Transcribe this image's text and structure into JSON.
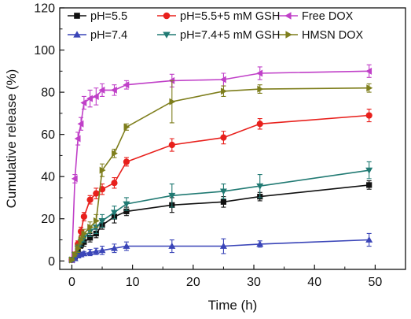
{
  "chart_data": {
    "type": "line",
    "xlabel": "Time (h)",
    "ylabel": "Cumulative release (%)",
    "xlim": [
      -2,
      55
    ],
    "ylim": [
      -4,
      120
    ],
    "xticks": [
      0,
      10,
      20,
      30,
      40,
      50
    ],
    "yticks": [
      0,
      20,
      40,
      60,
      80,
      100,
      120
    ],
    "grid": false,
    "legend_position": "top-left",
    "series": [
      {
        "name": "pH=5.5",
        "color": "#111111",
        "marker": "square",
        "x": [
          0,
          0.5,
          1,
          1.5,
          2,
          3,
          4,
          5,
          7,
          9,
          16.5,
          25,
          31,
          49
        ],
        "y": [
          0.5,
          2,
          5,
          7.5,
          9,
          11,
          13,
          17,
          21,
          23.5,
          26.5,
          28,
          30.5,
          36
        ],
        "err": [
          0.5,
          1,
          1.5,
          1.5,
          2,
          2,
          2,
          2,
          3,
          2,
          3.5,
          2.5,
          2,
          2
        ]
      },
      {
        "name": "pH=5.5+5 mM GSH",
        "color": "#e8201c",
        "marker": "circle",
        "x": [
          0,
          0.5,
          1,
          1.5,
          2,
          3,
          4,
          5,
          7,
          9,
          16.5,
          25,
          31,
          49
        ],
        "y": [
          0.5,
          3,
          8,
          14,
          21,
          29,
          32,
          34,
          37,
          47,
          55,
          58.5,
          65,
          69
        ],
        "err": [
          0.5,
          1,
          1.5,
          2,
          2,
          2,
          2.5,
          2.5,
          2.5,
          2,
          3,
          3,
          2.5,
          3
        ]
      },
      {
        "name": "Free DOX",
        "color": "#c040c8",
        "marker": "triangle-left",
        "x": [
          0,
          0.5,
          1,
          1.5,
          2,
          3,
          4,
          5,
          7,
          9,
          16.5,
          25,
          31,
          49
        ],
        "y": [
          0.5,
          39,
          58,
          65,
          75,
          77,
          78,
          81,
          81,
          83.5,
          85.5,
          86,
          89,
          90
        ],
        "err": [
          0.5,
          2,
          3,
          3,
          3,
          4,
          4,
          3,
          2.5,
          2,
          3,
          3,
          3,
          3
        ]
      },
      {
        "name": "pH=7.4",
        "color": "#3a45b8",
        "marker": "triangle-up",
        "x": [
          0,
          0.5,
          1,
          1.5,
          2,
          3,
          4,
          5,
          7,
          9,
          16.5,
          25,
          31,
          49
        ],
        "y": [
          0.5,
          1.2,
          2.5,
          3,
          3.5,
          4,
          4.5,
          5,
          6,
          7,
          7,
          7,
          8,
          10
        ],
        "err": [
          0.3,
          0.5,
          1,
          1,
          1,
          1.5,
          1.5,
          2,
          2,
          2,
          3,
          3.5,
          1.5,
          3
        ]
      },
      {
        "name": "pH=7.4+5 mM GSH",
        "color": "#217a73",
        "marker": "triangle-down",
        "x": [
          0,
          0.5,
          1,
          1.5,
          2,
          3,
          4,
          5,
          7,
          9,
          16.5,
          25,
          31,
          49
        ],
        "y": [
          0.5,
          3,
          6,
          9,
          11,
          14,
          16,
          19,
          23,
          27,
          31,
          33,
          35.5,
          43
        ],
        "err": [
          0.5,
          1,
          1.5,
          2,
          2,
          2.5,
          3,
          3,
          3,
          3,
          5.5,
          3.5,
          5.5,
          4
        ]
      },
      {
        "name": "HMSN DOX",
        "color": "#7e7e1c",
        "marker": "triangle-right",
        "x": [
          0,
          0.5,
          1,
          1.5,
          2,
          3,
          4,
          5,
          7,
          9,
          16.5,
          25,
          31,
          49
        ],
        "y": [
          0.5,
          3,
          6,
          10,
          13,
          16,
          19,
          43,
          51,
          63.5,
          75.5,
          80.5,
          81.5,
          82
        ],
        "err": [
          0.5,
          1,
          2,
          2,
          2,
          2.5,
          3,
          3,
          2,
          1.5,
          10,
          2.5,
          2,
          2
        ]
      }
    ],
    "legend": [
      {
        "series": 0,
        "col": 0,
        "row": 0
      },
      {
        "series": 1,
        "col": 1,
        "row": 0
      },
      {
        "series": 2,
        "col": 2,
        "row": 0
      },
      {
        "series": 3,
        "col": 0,
        "row": 1
      },
      {
        "series": 4,
        "col": 1,
        "row": 1
      },
      {
        "series": 5,
        "col": 2,
        "row": 1
      }
    ]
  }
}
